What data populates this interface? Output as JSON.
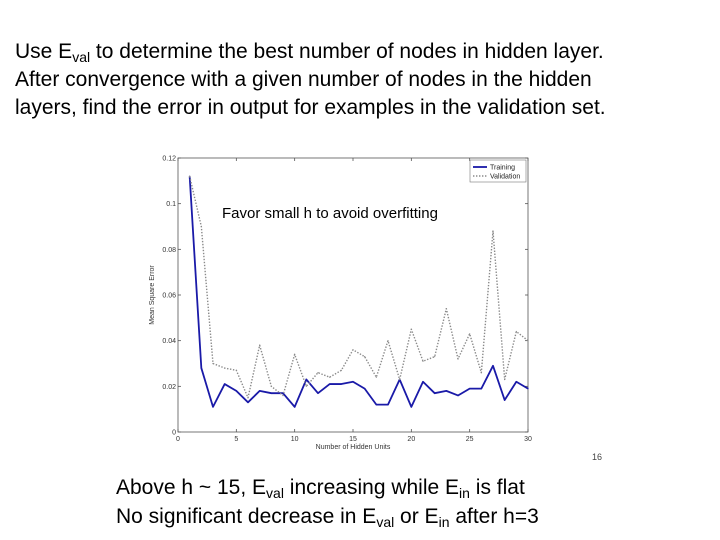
{
  "slide": {
    "line1": {
      "pre": "Use E",
      "sub": "val",
      "post": " to determine the best number of nodes in hidden layer."
    },
    "line2": "After convergence with a given number of nodes in the hidden",
    "line3": "layers, find the error in output for examples in the validation set.",
    "bottom1": {
      "a": "Above h ~ 15, E",
      "sub1": "val",
      "b": " increasing while E",
      "sub2": "in",
      "c": " is flat"
    },
    "bottom2": {
      "a": "No significant decrease in E",
      "sub1": "val",
      "b": " or E",
      "sub2": "in",
      "c": " after h=3"
    },
    "page_number": "16"
  },
  "chart_data": {
    "type": "line",
    "title": "",
    "xlabel": "Number of Hidden Units",
    "ylabel": "Mean Square Error",
    "xlim": [
      0,
      30
    ],
    "ylim": [
      0,
      0.12
    ],
    "xticks": [
      0,
      5,
      10,
      15,
      20,
      25,
      30
    ],
    "xtick_labels": [
      "0",
      "5",
      "10",
      "15",
      "20",
      "25",
      "30"
    ],
    "yticks": [
      0,
      0.02,
      0.04,
      0.06,
      0.08,
      0.1,
      0.12
    ],
    "ytick_labels": [
      "0",
      "0.02",
      "0.04",
      "0.06",
      "0.08",
      "0.1",
      "0.12"
    ],
    "legend_position": "top-right",
    "annotation": "Favor small h to avoid overfitting",
    "colors": {
      "training": "#1a1aa8",
      "validation": "#8a8a8a"
    },
    "x": [
      1,
      2,
      3,
      4,
      5,
      6,
      7,
      8,
      9,
      10,
      11,
      12,
      13,
      14,
      15,
      16,
      17,
      18,
      19,
      20,
      21,
      22,
      23,
      24,
      25,
      26,
      27,
      28,
      29,
      30
    ],
    "series": [
      {
        "name": "Training",
        "style": "solid",
        "values": [
          0.112,
          0.028,
          0.011,
          0.021,
          0.018,
          0.013,
          0.018,
          0.017,
          0.017,
          0.011,
          0.023,
          0.017,
          0.021,
          0.021,
          0.022,
          0.019,
          0.012,
          0.012,
          0.023,
          0.011,
          0.022,
          0.017,
          0.018,
          0.016,
          0.019,
          0.019,
          0.029,
          0.014,
          0.022,
          0.019
        ]
      },
      {
        "name": "Validation",
        "style": "dotted",
        "values": [
          0.112,
          0.09,
          0.03,
          0.028,
          0.027,
          0.015,
          0.038,
          0.02,
          0.016,
          0.034,
          0.02,
          0.026,
          0.024,
          0.027,
          0.036,
          0.033,
          0.024,
          0.04,
          0.023,
          0.045,
          0.031,
          0.033,
          0.054,
          0.032,
          0.043,
          0.026,
          0.088,
          0.023,
          0.044,
          0.04
        ]
      }
    ]
  }
}
